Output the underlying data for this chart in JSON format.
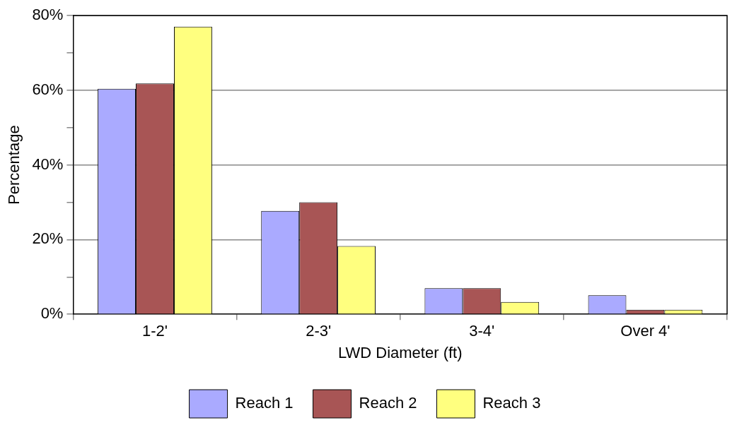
{
  "chart_data": {
    "type": "bar",
    "xlabel": "LWD Diameter (ft)",
    "ylabel": "Percentage",
    "categories": [
      "1-2'",
      "2-3'",
      "3-4'",
      "Over 4'"
    ],
    "series": [
      {
        "name": "Reach 1",
        "color": "#aaaaff",
        "values": [
          60.4,
          27.7,
          7.0,
          5.1
        ]
      },
      {
        "name": "Reach 2",
        "color": "#a85555",
        "values": [
          61.8,
          30.0,
          7.0,
          1.2
        ]
      },
      {
        "name": "Reach 3",
        "color": "#ffff7f",
        "values": [
          77.0,
          18.3,
          3.3,
          1.2
        ]
      }
    ],
    "ylim": [
      0,
      80
    ],
    "yticks": [
      {
        "value": 0,
        "label": "0%"
      },
      {
        "value": 10,
        "label": null
      },
      {
        "value": 20,
        "label": "20%"
      },
      {
        "value": 30,
        "label": null
      },
      {
        "value": 40,
        "label": "40%"
      },
      {
        "value": 50,
        "label": null
      },
      {
        "value": 60,
        "label": "60%"
      },
      {
        "value": 70,
        "label": null
      },
      {
        "value": 80,
        "label": "80%"
      }
    ],
    "grid": "y",
    "legend": "bottom"
  }
}
